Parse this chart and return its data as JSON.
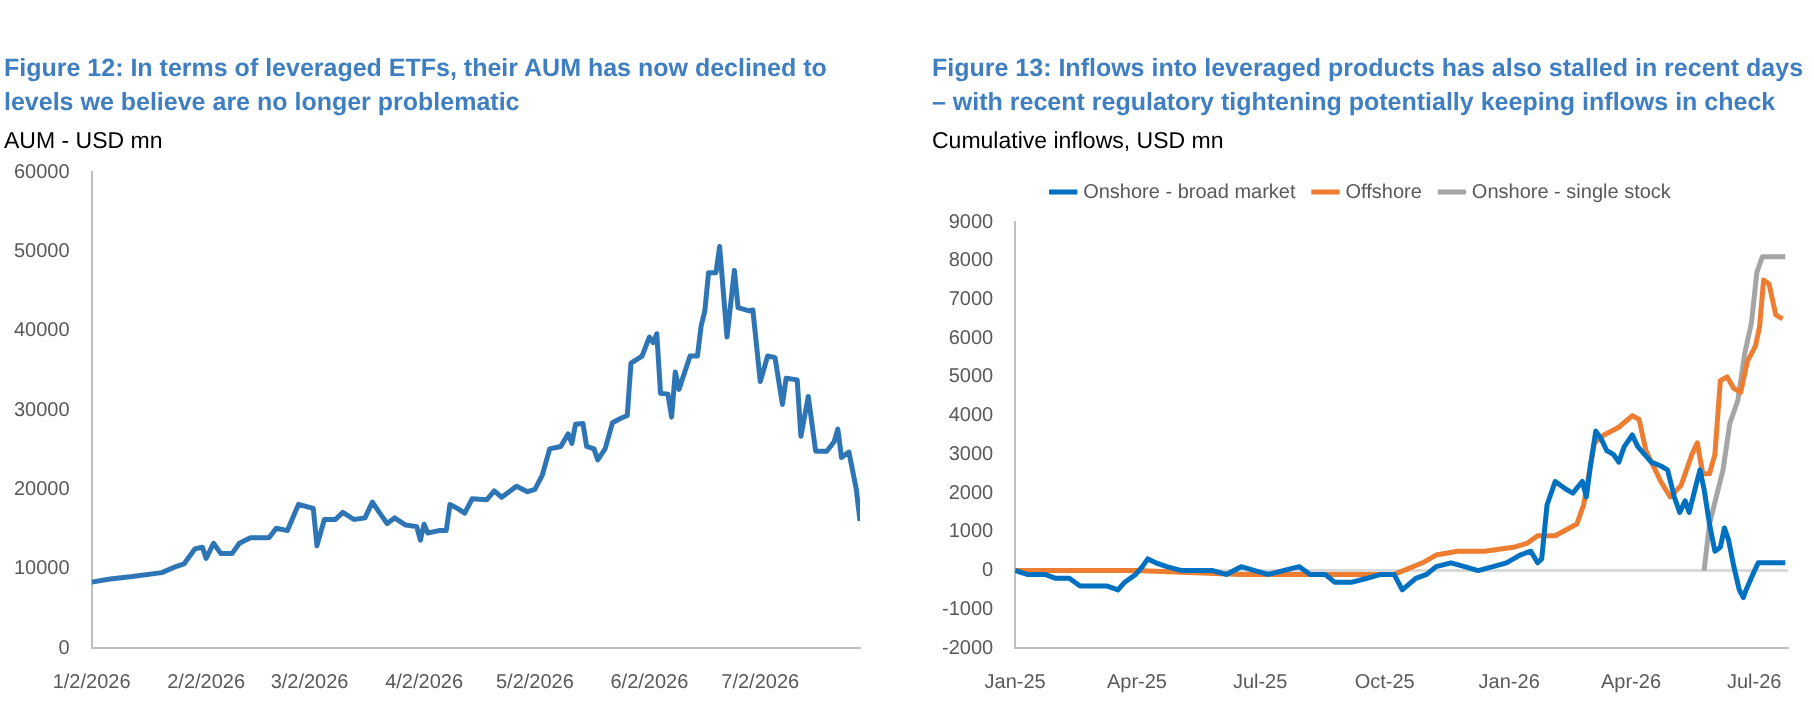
{
  "chart_data": [
    {
      "type": "line",
      "title": "Figure 12: In terms of leveraged ETFs, their AUM has now declined to levels we believe are no longer problematic",
      "subtitle": "AUM - USD mn",
      "x": [
        "2026-01-02",
        "2026-01-07",
        "2026-01-13",
        "2026-01-21",
        "2026-01-25",
        "2026-01-27",
        "2026-01-30",
        "2026-02-01",
        "2026-02-02",
        "2026-02-04",
        "2026-02-06",
        "2026-02-09",
        "2026-02-11",
        "2026-02-14",
        "2026-02-19",
        "2026-02-21",
        "2026-02-24",
        "2026-02-27",
        "2026-03-03",
        "2026-03-04",
        "2026-03-06",
        "2026-03-09",
        "2026-03-11",
        "2026-03-14",
        "2026-03-17",
        "2026-03-19",
        "2026-03-21",
        "2026-03-23",
        "2026-03-25",
        "2026-03-28",
        "2026-03-31",
        "2026-04-01",
        "2026-04-02",
        "2026-04-03",
        "2026-04-06",
        "2026-04-08",
        "2026-04-09",
        "2026-04-11",
        "2026-04-13",
        "2026-04-15",
        "2026-04-19",
        "2026-04-21",
        "2026-04-23",
        "2026-04-27",
        "2026-04-30",
        "2026-05-02",
        "2026-05-04",
        "2026-05-06",
        "2026-05-09",
        "2026-05-11",
        "2026-05-12",
        "2026-05-13",
        "2026-05-15",
        "2026-05-16",
        "2026-05-18",
        "2026-05-19",
        "2026-05-21",
        "2026-05-23",
        "2026-05-25",
        "2026-05-27",
        "2026-05-28",
        "2026-05-31",
        "2026-06-02",
        "2026-06-03",
        "2026-06-04",
        "2026-06-05",
        "2026-06-07",
        "2026-06-08",
        "2026-06-09",
        "2026-06-10",
        "2026-06-13",
        "2026-06-15",
        "2026-06-16",
        "2026-06-17",
        "2026-06-18",
        "2026-06-20",
        "2026-06-21",
        "2026-06-23",
        "2026-06-25",
        "2026-06-26",
        "2026-06-29",
        "2026-06-30",
        "2026-07-02",
        "2026-07-04",
        "2026-07-06",
        "2026-07-08",
        "2026-07-09",
        "2026-07-12",
        "2026-07-13",
        "2026-07-15",
        "2026-07-17",
        "2026-07-20",
        "2026-07-22",
        "2026-07-23",
        "2026-07-24",
        "2026-07-26",
        "2026-07-28",
        "2026-07-29"
      ],
      "values": [
        8300,
        8700,
        9000,
        9500,
        10300,
        10600,
        12500,
        12700,
        11300,
        13200,
        11900,
        11900,
        13200,
        13900,
        13900,
        15100,
        14800,
        18100,
        17600,
        12900,
        16200,
        16200,
        17100,
        16200,
        16400,
        18400,
        17000,
        15700,
        16400,
        15500,
        15300,
        13600,
        15600,
        14500,
        14800,
        14800,
        18100,
        17600,
        17000,
        18800,
        18700,
        19800,
        19000,
        20400,
        19700,
        20000,
        21800,
        25100,
        25400,
        27000,
        25800,
        28200,
        28300,
        25400,
        25100,
        23700,
        25100,
        28400,
        28900,
        29300,
        35900,
        36800,
        39200,
        38500,
        39600,
        32100,
        32000,
        29100,
        34800,
        32600,
        36800,
        36800,
        40600,
        42500,
        47300,
        47300,
        50600,
        39200,
        47600,
        42900,
        42500,
        42600,
        33600,
        36800,
        36600,
        30700,
        34000,
        33800,
        26700,
        31700,
        24800,
        24800,
        26000,
        27600,
        24000,
        24700,
        20000,
        16000
      ],
      "color": "#2e75b6",
      "xlim": [
        "2026-01-02",
        "2026-07-29"
      ],
      "xticks": [
        {
          "value": "2026-01-02",
          "label": "1/2/2026"
        },
        {
          "value": "2026-02-02",
          "label": "2/2/2026"
        },
        {
          "value": "2026-03-02",
          "label": "3/2/2026"
        },
        {
          "value": "2026-04-02",
          "label": "4/2/2026"
        },
        {
          "value": "2026-05-02",
          "label": "5/2/2026"
        },
        {
          "value": "2026-06-02",
          "label": "6/2/2026"
        },
        {
          "value": "2026-07-02",
          "label": "7/2/2026"
        }
      ],
      "ylim": [
        0,
        60000
      ],
      "yticks": [
        0,
        10000,
        20000,
        30000,
        40000,
        50000,
        60000
      ],
      "grid": false
    },
    {
      "type": "line",
      "title": "Figure 13: Inflows into leveraged products has also stalled in recent days – with recent regulatory tightening potentially keeping inflows in check",
      "subtitle": "Cumulative inflows, USD mn",
      "series": [
        {
          "name": "Onshore - broad market",
          "color": "#0070c0",
          "x": [
            "2025-01-01",
            "2025-01-10",
            "2025-01-23",
            "2025-01-31",
            "2025-02-10",
            "2025-02-18",
            "2025-02-28",
            "2025-03-10",
            "2025-03-18",
            "2025-03-23",
            "2025-03-31",
            "2025-04-05",
            "2025-04-09",
            "2025-04-15",
            "2025-04-23",
            "2025-05-04",
            "2025-05-16",
            "2025-05-27",
            "2025-06-06",
            "2025-06-17",
            "2025-06-27",
            "2025-07-07",
            "2025-07-18",
            "2025-07-30",
            "2025-08-07",
            "2025-08-18",
            "2025-08-25",
            "2025-09-07",
            "2025-09-18",
            "2025-09-28",
            "2025-10-08",
            "2025-10-14",
            "2025-10-24",
            "2025-11-01",
            "2025-11-08",
            "2025-11-19",
            "2025-11-29",
            "2025-12-09",
            "2025-12-20",
            "2025-12-30",
            "2026-01-09",
            "2026-01-17",
            "2026-01-22",
            "2026-01-25",
            "2026-01-29",
            "2026-02-04",
            "2026-02-12",
            "2026-02-17",
            "2026-02-24",
            "2026-02-27",
            "2026-03-02",
            "2026-03-06",
            "2026-03-10",
            "2026-03-14",
            "2026-03-19",
            "2026-03-23",
            "2026-03-27",
            "2026-04-02",
            "2026-04-06",
            "2026-04-11",
            "2026-04-16",
            "2026-04-23",
            "2026-04-28",
            "2026-05-03",
            "2026-05-07",
            "2026-05-11",
            "2026-05-14",
            "2026-05-19",
            "2026-05-22",
            "2026-05-25",
            "2026-05-29",
            "2026-06-02",
            "2026-06-06",
            "2026-06-09",
            "2026-06-12",
            "2026-06-16",
            "2026-06-20",
            "2026-06-23",
            "2026-06-25",
            "2026-06-30",
            "2026-07-04",
            "2026-07-09",
            "2026-07-15",
            "2026-07-20",
            "2026-07-24"
          ],
          "values": [
            0,
            -100,
            -100,
            -200,
            -200,
            -400,
            -400,
            -400,
            -500,
            -300,
            -100,
            100,
            300,
            200,
            100,
            0,
            0,
            0,
            -100,
            100,
            0,
            -100,
            0,
            100,
            -100,
            -100,
            -300,
            -300,
            -200,
            -100,
            -100,
            -500,
            -200,
            -100,
            100,
            200,
            100,
            0,
            100,
            200,
            400,
            500,
            200,
            300,
            1700,
            2300,
            2100,
            2000,
            2300,
            1900,
            2700,
            3600,
            3400,
            3100,
            3000,
            2800,
            3200,
            3500,
            3200,
            3000,
            2800,
            2700,
            2600,
            1900,
            1500,
            1800,
            1500,
            2200,
            2600,
            2100,
            1200,
            500,
            600,
            1100,
            800,
            100,
            -500,
            -700,
            -500,
            -100,
            200,
            200,
            200,
            200,
            200
          ]
        },
        {
          "name": "Offshore",
          "color": "#ed7d31",
          "x": [
            "2025-01-01",
            "2025-03-31",
            "2025-06-17",
            "2025-08-18",
            "2025-10-08",
            "2025-10-29",
            "2025-11-08",
            "2025-11-24",
            "2025-12-14",
            "2026-01-04",
            "2026-01-14",
            "2026-01-22",
            "2026-02-04",
            "2026-02-20",
            "2026-02-25",
            "2026-03-05",
            "2026-03-12",
            "2026-03-23",
            "2026-04-02",
            "2026-04-07",
            "2026-04-12",
            "2026-04-23",
            "2026-04-30",
            "2026-05-08",
            "2026-05-16",
            "2026-05-20",
            "2026-05-24",
            "2026-05-29",
            "2026-06-02",
            "2026-06-06",
            "2026-06-11",
            "2026-06-16",
            "2026-06-21",
            "2026-06-26",
            "2026-07-02",
            "2026-07-05",
            "2026-07-08",
            "2026-07-12",
            "2026-07-17",
            "2026-07-22"
          ],
          "values": [
            0,
            0,
            -100,
            -100,
            -100,
            200,
            400,
            500,
            500,
            600,
            700,
            900,
            900,
            1200,
            1700,
            3300,
            3500,
            3700,
            4000,
            3900,
            3100,
            2300,
            1900,
            2200,
            3000,
            3300,
            2500,
            2500,
            3000,
            4900,
            5000,
            4700,
            4600,
            5400,
            5800,
            6300,
            7500,
            7400,
            6600,
            6500
          ]
        },
        {
          "name": "Onshore - single stock",
          "color": "#a5a5a5",
          "x": [
            "2026-05-25",
            "2026-05-29",
            "2026-06-03",
            "2026-06-08",
            "2026-06-13",
            "2026-06-19",
            "2026-06-24",
            "2026-06-29",
            "2026-07-03",
            "2026-07-07",
            "2026-07-15",
            "2026-07-24"
          ],
          "values": [
            0,
            1200,
            1900,
            2600,
            3800,
            4400,
            5600,
            6400,
            7700,
            8100,
            8100,
            8100
          ]
        }
      ],
      "xlim": [
        "2025-01-01",
        "2026-07-26"
      ],
      "xticks": [
        {
          "value": "2025-01-01",
          "label": "Jan-25"
        },
        {
          "value": "2025-04-01",
          "label": "Apr-25"
        },
        {
          "value": "2025-07-01",
          "label": "Jul-25"
        },
        {
          "value": "2025-10-01",
          "label": "Oct-25"
        },
        {
          "value": "2026-01-01",
          "label": "Jan-26"
        },
        {
          "value": "2026-04-01",
          "label": "Apr-26"
        },
        {
          "value": "2026-07-01",
          "label": "Jul-26"
        }
      ],
      "ylim": [
        -2000,
        9000
      ],
      "yticks": [
        -2000,
        -1000,
        0,
        1000,
        2000,
        3000,
        4000,
        5000,
        6000,
        7000,
        8000,
        9000
      ],
      "ref_lines": [
        {
          "axis": "y",
          "value": 0,
          "color": "#d9d9d9"
        }
      ],
      "legend": "top",
      "grid": false
    }
  ]
}
